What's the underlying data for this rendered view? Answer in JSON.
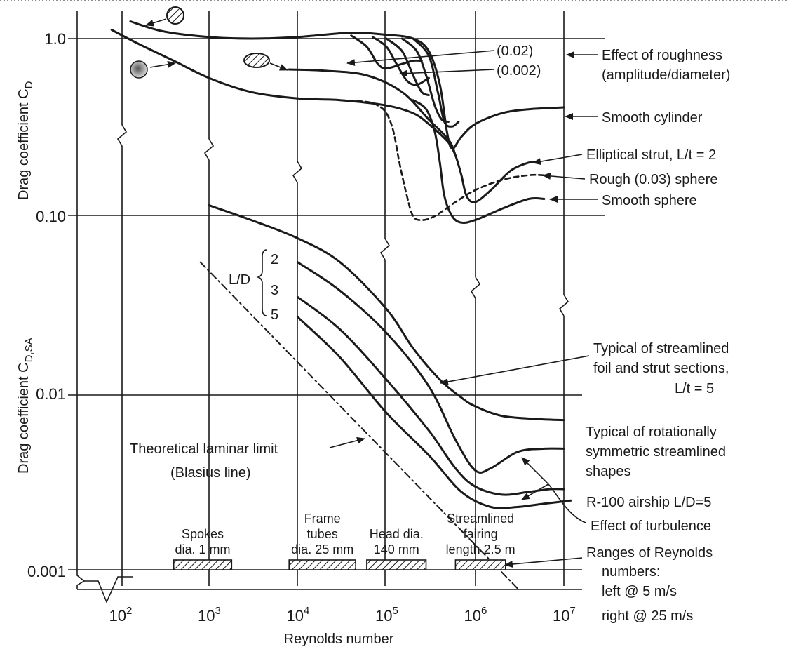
{
  "chart_data": {
    "type": "line",
    "title": "",
    "xlabel": "Reynolds number",
    "ylabel_upper": "Drag coefficient C",
    "ylabel_upper_sub": "D",
    "ylabel_lower": "Drag coefficient C",
    "ylabel_lower_sub": "D,SA",
    "x_scale": "log",
    "y_scale": "log",
    "xlim": [
      40,
      12000000
    ],
    "ylim": [
      0.0007,
      2.2
    ],
    "grid": true,
    "x_ticks": [
      {
        "value": 100,
        "base": "10",
        "exp": "2"
      },
      {
        "value": 1000,
        "base": "10",
        "exp": "3"
      },
      {
        "value": 10000,
        "base": "10",
        "exp": "4"
      },
      {
        "value": 100000,
        "base": "10",
        "exp": "5"
      },
      {
        "value": 1000000,
        "base": "10",
        "exp": "6"
      },
      {
        "value": 10000000,
        "base": "10",
        "exp": "7"
      }
    ],
    "y_ticks": [
      {
        "value": 1.0,
        "label": "1.0"
      },
      {
        "value": 0.1,
        "label": "0.10"
      },
      {
        "value": 0.01,
        "label": "0.01"
      },
      {
        "value": 0.001,
        "label": "0.001"
      }
    ],
    "series": [
      {
        "id": "smooth-cylinder",
        "style": "solid",
        "points": [
          [
            130,
            1.25
          ],
          [
            300,
            1.1
          ],
          [
            1000,
            1.02
          ],
          [
            3000,
            1.0
          ],
          [
            10000,
            1.02
          ],
          [
            40000,
            1.08
          ],
          [
            100000,
            1.05
          ],
          [
            200000,
            1.0
          ],
          [
            300000,
            0.85
          ],
          [
            400000,
            0.55
          ],
          [
            480000,
            0.3
          ],
          [
            550000,
            0.24
          ],
          [
            700000,
            0.28
          ],
          [
            1000000,
            0.33
          ],
          [
            2000000,
            0.38
          ],
          [
            4000000,
            0.4
          ],
          [
            10000000,
            0.41
          ]
        ]
      },
      {
        "id": "smooth-cylinder-lower-branch",
        "style": "solid",
        "points": [
          [
            80,
            1.12
          ],
          [
            150,
            0.95
          ],
          [
            400,
            0.75
          ],
          [
            1000,
            0.6
          ],
          [
            3000,
            0.5
          ],
          [
            10000,
            0.46
          ],
          [
            30000,
            0.45
          ],
          [
            100000,
            0.42
          ],
          [
            200000,
            0.38
          ],
          [
            300000,
            0.33
          ],
          [
            500000,
            0.26
          ],
          [
            600000,
            0.22
          ]
        ]
      },
      {
        "id": "rough-cyl-002",
        "style": "solid",
        "points": [
          [
            40000,
            1.04
          ],
          [
            60000,
            0.9
          ],
          [
            80000,
            0.72
          ],
          [
            100000,
            0.68
          ],
          [
            150000,
            0.72
          ],
          [
            200000,
            0.75
          ],
          [
            250000,
            0.75
          ]
        ]
      },
      {
        "id": "rough-cyl-0002",
        "style": "solid",
        "points": [
          [
            70000,
            1.02
          ],
          [
            100000,
            0.9
          ],
          [
            130000,
            0.72
          ],
          [
            170000,
            0.58
          ],
          [
            220000,
            0.55
          ],
          [
            300000,
            0.6
          ]
        ]
      },
      {
        "id": "rough-cyl-3",
        "style": "solid",
        "points": [
          [
            100000,
            1.0
          ],
          [
            150000,
            0.85
          ],
          [
            200000,
            0.62
          ],
          [
            250000,
            0.5
          ],
          [
            300000,
            0.48
          ]
        ]
      },
      {
        "id": "rough-cyl-4",
        "style": "solid",
        "points": [
          [
            150000,
            1.0
          ],
          [
            220000,
            0.85
          ],
          [
            280000,
            0.62
          ],
          [
            350000,
            0.42
          ],
          [
            420000,
            0.35
          ],
          [
            500000,
            0.34
          ]
        ]
      },
      {
        "id": "rough-cyl-5",
        "style": "solid",
        "points": [
          [
            200000,
            1.0
          ],
          [
            300000,
            0.8
          ],
          [
            380000,
            0.5
          ],
          [
            450000,
            0.34
          ],
          [
            550000,
            0.32
          ],
          [
            650000,
            0.34
          ]
        ]
      },
      {
        "id": "elliptical-strut",
        "style": "solid",
        "points": [
          [
            8000,
            0.67
          ],
          [
            20000,
            0.66
          ],
          [
            60000,
            0.62
          ],
          [
            150000,
            0.5
          ],
          [
            300000,
            0.35
          ],
          [
            500000,
            0.27
          ],
          [
            600000,
            0.22
          ],
          [
            700000,
            0.17
          ],
          [
            800000,
            0.13
          ],
          [
            1000000,
            0.12
          ],
          [
            1500000,
            0.14
          ],
          [
            2500000,
            0.18
          ],
          [
            4000000,
            0.2
          ],
          [
            5000000,
            0.2
          ]
        ]
      },
      {
        "id": "rough-sphere",
        "style": "dashed",
        "points": [
          [
            30000,
            0.45
          ],
          [
            60000,
            0.44
          ],
          [
            80000,
            0.42
          ],
          [
            100000,
            0.38
          ],
          [
            120000,
            0.3
          ],
          [
            140000,
            0.2
          ],
          [
            170000,
            0.13
          ],
          [
            200000,
            0.1
          ],
          [
            250000,
            0.095
          ],
          [
            350000,
            0.1
          ],
          [
            600000,
            0.12
          ],
          [
            1000000,
            0.14
          ],
          [
            2000000,
            0.16
          ],
          [
            4000000,
            0.17
          ],
          [
            6000000,
            0.17
          ]
        ]
      },
      {
        "id": "smooth-sphere",
        "style": "solid",
        "points": [
          [
            200000,
            0.45
          ],
          [
            280000,
            0.4
          ],
          [
            350000,
            0.3
          ],
          [
            400000,
            0.2
          ],
          [
            450000,
            0.13
          ],
          [
            550000,
            0.1
          ],
          [
            700000,
            0.092
          ],
          [
            1000000,
            0.095
          ],
          [
            2000000,
            0.11
          ],
          [
            4000000,
            0.125
          ],
          [
            6000000,
            0.125
          ]
        ]
      },
      {
        "id": "foil-strut-sections",
        "style": "solid",
        "points": [
          [
            1000,
            0.115
          ],
          [
            3000,
            0.095
          ],
          [
            10000,
            0.075
          ],
          [
            30000,
            0.055
          ],
          [
            100000,
            0.03
          ],
          [
            200000,
            0.018
          ],
          [
            400000,
            0.012
          ],
          [
            700000,
            0.0095
          ],
          [
            1000000,
            0.0085
          ],
          [
            2000000,
            0.0075
          ],
          [
            5000000,
            0.0072
          ],
          [
            10000000,
            0.0071
          ]
        ]
      },
      {
        "id": "ld-2",
        "style": "solid",
        "points": [
          [
            10000,
            0.055
          ],
          [
            30000,
            0.038
          ],
          [
            100000,
            0.022
          ],
          [
            300000,
            0.011
          ],
          [
            600000,
            0.0055
          ],
          [
            1000000,
            0.0037
          ],
          [
            1500000,
            0.0038
          ],
          [
            3000000,
            0.0047
          ],
          [
            6000000,
            0.0049
          ],
          [
            10000000,
            0.0049
          ]
        ]
      },
      {
        "id": "ld-3",
        "style": "solid",
        "points": [
          [
            10000,
            0.035
          ],
          [
            30000,
            0.023
          ],
          [
            100000,
            0.012
          ],
          [
            300000,
            0.0062
          ],
          [
            600000,
            0.0038
          ],
          [
            1000000,
            0.003
          ],
          [
            2000000,
            0.0027
          ],
          [
            4000000,
            0.0028
          ],
          [
            7000000,
            0.0029
          ],
          [
            10000000,
            0.0029
          ]
        ]
      },
      {
        "id": "ld-5",
        "style": "solid",
        "points": [
          [
            10000,
            0.027
          ],
          [
            30000,
            0.016
          ],
          [
            100000,
            0.0078
          ],
          [
            300000,
            0.0045
          ],
          [
            700000,
            0.0028
          ],
          [
            1500000,
            0.0023
          ],
          [
            3000000,
            0.0023
          ],
          [
            6000000,
            0.0024
          ],
          [
            12000000,
            0.0025
          ]
        ]
      },
      {
        "id": "blasius-line",
        "style": "dashdot",
        "points": [
          [
            800,
            0.055
          ],
          [
            3000000,
            0.0008
          ]
        ]
      }
    ],
    "annotations": {
      "roughness_002": "(0.02)",
      "roughness_0002": "(0.002)",
      "effect_roughness_1": "Effect of roughness",
      "effect_roughness_2": "(amplitude/diameter)",
      "smooth_cylinder": "Smooth cylinder",
      "elliptical_strut": "Elliptical strut, L/t = 2",
      "rough_sphere": "Rough (0.03) sphere",
      "smooth_sphere": "Smooth sphere",
      "ld_label": "L/D",
      "ld_2": "2",
      "ld_3": "3",
      "ld_5": "5",
      "foil_1": "Typical of streamlined",
      "foil_2": "foil and strut sections,",
      "foil_3": "L/t = 5",
      "rot_1": "Typical of rotationally",
      "rot_2": "symmetric streamlined",
      "rot_3": "shapes",
      "r100": "R-100 airship L/D=5",
      "turbulence": "Effect of turbulence",
      "blasius_1": "Theoretical laminar limit",
      "blasius_2": "(Blasius line)",
      "ranges_1": "Ranges of Reynolds",
      "ranges_2": "numbers:",
      "ranges_3": "left @ 5 m/s",
      "ranges_4": "right @ 25 m/s"
    },
    "ranges": [
      {
        "id": "spokes",
        "label1": "Spokes",
        "label2": "dia. 1 mm",
        "x": [
          400,
          1800
        ]
      },
      {
        "id": "frame-tubes",
        "label0": "Frame",
        "label1": "tubes",
        "label2": "dia. 25 mm",
        "x": [
          8000,
          45000
        ]
      },
      {
        "id": "head",
        "label1": "Head dia.",
        "label2": "140 mm",
        "x": [
          60000,
          280000
        ]
      },
      {
        "id": "fairing",
        "label0": "Streamlined",
        "label1": "fairing",
        "label2": "length 2.5 m",
        "x": [
          600000,
          2200000
        ]
      }
    ]
  }
}
